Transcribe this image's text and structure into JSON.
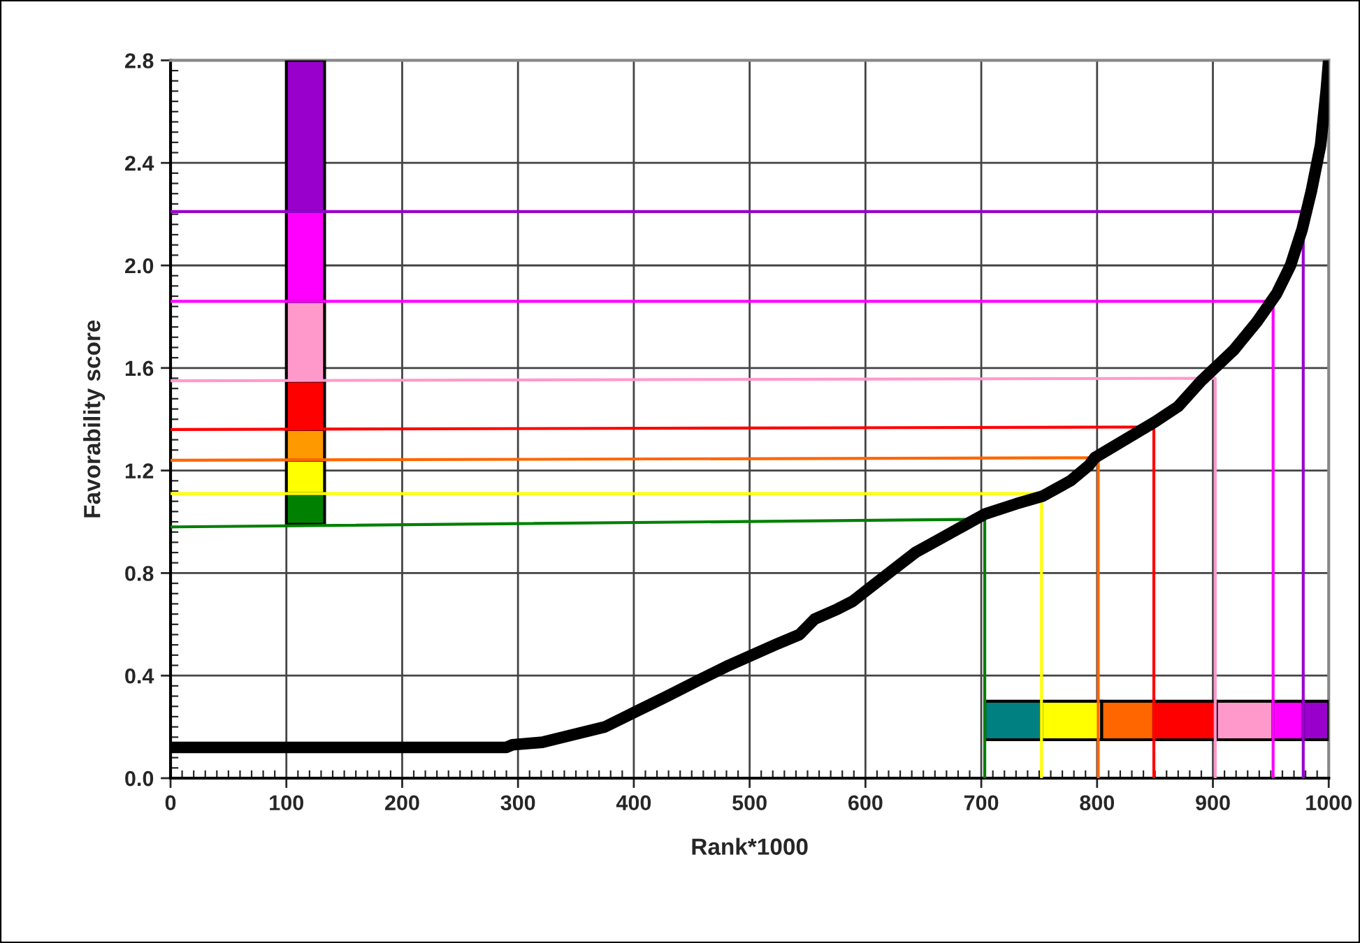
{
  "chart_data": {
    "type": "line",
    "xlabel": "Rank*1000",
    "ylabel": "Favorability score",
    "xlim": [
      0,
      1000
    ],
    "xticks": [
      0,
      100,
      200,
      300,
      400,
      500,
      600,
      700,
      800,
      900,
      1000
    ],
    "ylim": [
      0,
      2.8
    ],
    "yticks": [
      {
        "value": 0,
        "label": "0.0"
      },
      {
        "value": 0.4,
        "label": "0.4"
      },
      {
        "value": 0.8,
        "label": "0.8"
      },
      {
        "value": 1.2,
        "label": "1.2"
      },
      {
        "value": 1.6,
        "label": "1.6"
      },
      {
        "value": 2.0,
        "label": "2.0"
      },
      {
        "value": 2.4,
        "label": "2.4"
      },
      {
        "value": 2.8,
        "label": "2.8"
      }
    ],
    "grid": true,
    "legend": false,
    "series": [
      {
        "type": "histogram",
        "bins": [
          703,
          752,
          804,
          849,
          903,
          952,
          978,
          1000
        ],
        "base": [
          0.15,
          0.15,
          0.15,
          0.15,
          0.15,
          0.15,
          0.15
        ],
        "values": [
          0.15,
          0.15,
          0.15,
          0.15,
          0.15,
          0.15,
          0.15
        ],
        "colors": [
          "#008080",
          "#ffff00",
          "#ff6600",
          "#ff0000",
          "#ff99cc",
          "#ff00ff",
          "#9900cc"
        ]
      },
      {
        "type": "bar",
        "x": [
          100
        ],
        "base": [
          0.99
        ],
        "values": [
          0.12
        ],
        "color": "#008000"
      },
      {
        "type": "bar",
        "x": [
          100
        ],
        "base": [
          1.11
        ],
        "values": [
          0.13
        ],
        "color": "#ffff00"
      },
      {
        "type": "bar",
        "x": [
          100
        ],
        "base": [
          1.24
        ],
        "values": [
          0.12
        ],
        "color": "#ff9900"
      },
      {
        "type": "bar",
        "x": [
          100
        ],
        "base": [
          1.36
        ],
        "values": [
          0.19
        ],
        "color": "#ff0000"
      },
      {
        "type": "bar",
        "x": [
          100
        ],
        "base": [
          1.55
        ],
        "values": [
          0.31
        ],
        "color": "#ff99cc"
      },
      {
        "type": "bar",
        "x": [
          100
        ],
        "base": [
          1.86
        ],
        "values": [
          0.35
        ],
        "color": "#ff00ff"
      },
      {
        "type": "bar",
        "x": [
          100
        ],
        "base": [
          2.21
        ],
        "values": [
          0.59
        ],
        "color": "#9900cc"
      },
      {
        "x": [
          0,
          703,
          703
        ],
        "values": [
          0.98,
          1.01,
          0
        ],
        "color": "#008000"
      },
      {
        "x": [
          0,
          752,
          752
        ],
        "values": [
          1.11,
          1.11,
          0
        ],
        "color": "#ffff00"
      },
      {
        "x": [
          0,
          801,
          801
        ],
        "values": [
          1.24,
          1.25,
          0
        ],
        "color": "#ff6600"
      },
      {
        "x": [
          0,
          849,
          849
        ],
        "values": [
          1.36,
          1.37,
          0
        ],
        "color": "#ff0000"
      },
      {
        "x": [
          0,
          902,
          902
        ],
        "values": [
          1.55,
          1.56,
          0
        ],
        "color": "#ff99cc"
      },
      {
        "x": [
          0,
          952,
          952
        ],
        "values": [
          1.86,
          1.86,
          0
        ],
        "color": "#ff00ff"
      },
      {
        "x": [
          0,
          978,
          978
        ],
        "values": [
          2.21,
          2.21,
          0
        ],
        "color": "#9900cc"
      },
      {
        "line_style": "solid",
        "color": "#000000",
        "x": [
          0,
          290,
          295,
          321,
          348,
          375,
          402,
          429,
          455,
          482,
          502,
          522,
          543,
          556,
          576,
          589,
          603,
          623,
          643,
          663,
          683,
          703,
          730,
          753,
          777,
          793,
          798,
          850,
          870,
          890,
          918,
          938,
          955,
          967,
          977,
          985,
          993,
          998,
          1000
        ],
        "values": [
          0.12,
          0.12,
          0.13,
          0.14,
          0.17,
          0.2,
          0.26,
          0.32,
          0.38,
          0.44,
          0.48,
          0.52,
          0.56,
          0.62,
          0.66,
          0.69,
          0.74,
          0.81,
          0.88,
          0.93,
          0.98,
          1.03,
          1.07,
          1.1,
          1.16,
          1.22,
          1.25,
          1.39,
          1.45,
          1.55,
          1.67,
          1.78,
          1.89,
          2.0,
          2.14,
          2.29,
          2.47,
          2.69,
          2.8
        ]
      }
    ]
  }
}
